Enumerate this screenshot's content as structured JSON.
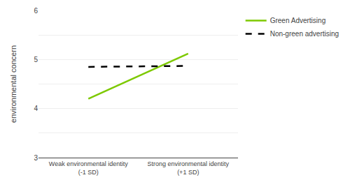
{
  "chart_data": {
    "type": "line",
    "ylabel": "environmental concern",
    "categories": [
      "Weak environmental identity\n(-1 SD)",
      "Strong environmental identity\n(+1 SD)"
    ],
    "series": [
      {
        "name": "Green Advertising",
        "color": "#7dc900",
        "line_style": "solid",
        "values": [
          4.2,
          5.12
        ]
      },
      {
        "name": "Non-green advertising",
        "color": "#000000",
        "line_style": "dashed",
        "values": [
          4.85,
          4.87
        ]
      }
    ],
    "ylim": [
      3,
      6
    ],
    "yticks": [
      3,
      {
        "value": 3.5,
        "label": ""
      },
      4,
      {
        "value": 4.5,
        "label": ""
      },
      5,
      {
        "value": 5.5,
        "label": ""
      },
      6
    ],
    "grid": true,
    "legend": "right"
  }
}
